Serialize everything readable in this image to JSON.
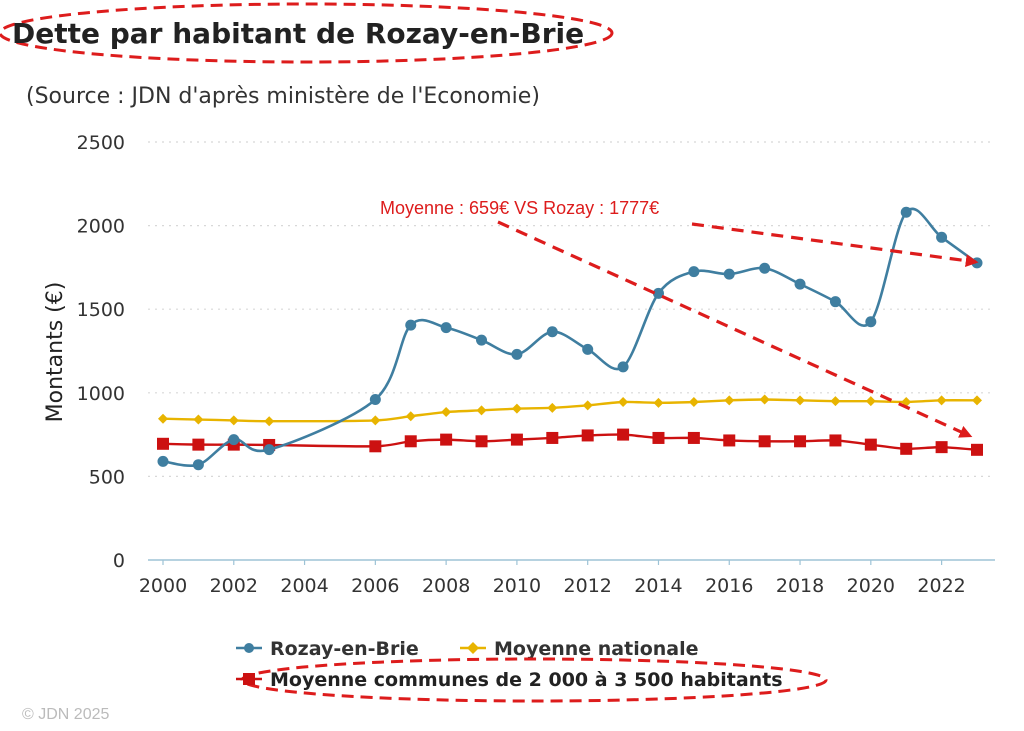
{
  "title": "Dette par habitant de Rozay-en-Brie",
  "subtitle": "(Source : JDN d'après ministère de l'Economie)",
  "annotation": "Moyenne : 659€ VS Rozay : 1777€",
  "footer": "© JDN 2025",
  "colors": {
    "rozay": "#3f7ea0",
    "nationale": "#e8b400",
    "communes": "#cc1111",
    "annotation": "#dd1c1c",
    "grid": "#d8d8d8",
    "axis": "#9dc3d6",
    "text": "#333333"
  },
  "chart_data": {
    "type": "line",
    "title": "Dette par habitant de Rozay-en-Brie",
    "ylabel": "Montants (€)",
    "xlabel": "",
    "ylim": [
      0,
      2500
    ],
    "yticks": [
      "0",
      "500",
      "1000",
      "1500",
      "2000",
      "2500"
    ],
    "xticks": [
      "2000",
      "2002",
      "2004",
      "2006",
      "2008",
      "2010",
      "2012",
      "2014",
      "2016",
      "2018",
      "2020",
      "2022"
    ],
    "grid": "horizontal dotted",
    "legend_position": "bottom",
    "x": [
      2000,
      2001,
      2002,
      2003,
      2004,
      2005,
      2006,
      2007,
      2008,
      2009,
      2010,
      2011,
      2012,
      2013,
      2014,
      2015,
      2016,
      2017,
      2018,
      2019,
      2020,
      2021,
      2022,
      2023
    ],
    "series": [
      {
        "name": "Rozay-en-Brie",
        "marker": "circle",
        "values": [
          590,
          570,
          720,
          660,
          null,
          null,
          960,
          1405,
          1390,
          1315,
          1230,
          1365,
          1260,
          1155,
          1595,
          1725,
          1710,
          1745,
          1650,
          1545,
          1425,
          2080,
          1930,
          1777
        ]
      },
      {
        "name": "Moyenne nationale",
        "marker": "diamond",
        "values": [
          845,
          840,
          835,
          830,
          null,
          null,
          835,
          860,
          885,
          895,
          905,
          910,
          925,
          945,
          940,
          945,
          955,
          960,
          955,
          950,
          950,
          945,
          955,
          955
        ]
      },
      {
        "name": "Moyenne communes de 2 000 à 3 500 habitants",
        "marker": "square",
        "values": [
          695,
          690,
          690,
          688,
          null,
          null,
          680,
          710,
          720,
          710,
          720,
          730,
          745,
          750,
          730,
          730,
          715,
          710,
          710,
          715,
          690,
          665,
          675,
          659
        ]
      }
    ]
  }
}
